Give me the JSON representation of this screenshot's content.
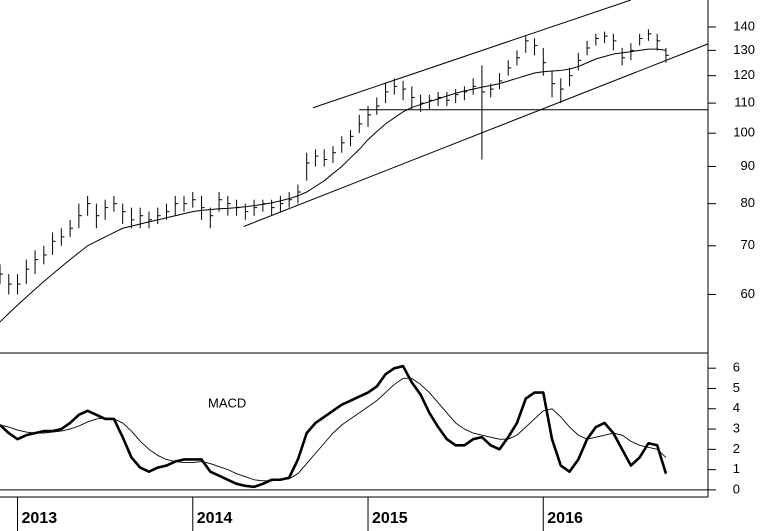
{
  "chart_data": [
    {
      "type": "ohlc",
      "x": [
        2012.9,
        2012.95,
        2013,
        2013.05,
        2013.1,
        2013.15,
        2013.2,
        2013.25,
        2013.3,
        2013.35,
        2013.4,
        2013.45,
        2013.5,
        2013.55,
        2013.6,
        2013.65,
        2013.7,
        2013.75,
        2013.8,
        2013.85,
        2013.9,
        2013.95,
        2014,
        2014.05,
        2014.1,
        2014.15,
        2014.2,
        2014.25,
        2014.3,
        2014.35,
        2014.4,
        2014.45,
        2014.5,
        2014.55,
        2014.6,
        2014.65,
        2014.7,
        2014.75,
        2014.8,
        2014.85,
        2014.9,
        2014.95,
        2015,
        2015.05,
        2015.1,
        2015.15,
        2015.2,
        2015.25,
        2015.3,
        2015.35,
        2015.4,
        2015.45,
        2015.5,
        2015.55,
        2015.6,
        2015.65,
        2015.7,
        2015.75,
        2015.8,
        2015.85,
        2015.9,
        2015.95,
        2016,
        2016.05,
        2016.1,
        2016.15,
        2016.2,
        2016.25,
        2016.3,
        2016.35,
        2016.4,
        2016.45,
        2016.5,
        2016.55,
        2016.6,
        2016.65,
        2016.7
      ],
      "high": [
        66,
        64,
        64,
        67,
        69,
        70,
        73,
        74,
        76,
        80,
        82,
        80,
        81,
        82,
        80,
        79,
        79,
        78,
        79,
        80,
        82,
        82,
        83,
        82,
        79,
        83,
        82,
        81,
        80,
        81,
        81,
        81,
        82,
        83,
        85,
        94,
        95,
        95,
        96,
        99,
        101,
        106,
        109,
        112,
        117,
        119,
        118,
        116,
        113,
        113,
        114,
        114,
        115,
        116,
        119,
        124,
        117,
        121,
        126,
        130,
        136,
        135,
        131,
        122,
        119,
        123,
        129,
        134,
        137,
        138,
        137,
        131,
        133,
        137,
        139,
        137,
        131
      ],
      "low": [
        62,
        60,
        60,
        62,
        64,
        66,
        68,
        70,
        72,
        74,
        77,
        74,
        76,
        78,
        75,
        74,
        74,
        74,
        75,
        76,
        77,
        78,
        79,
        76,
        74,
        78,
        77,
        77,
        76,
        77,
        78,
        77,
        78,
        79,
        80,
        86,
        90,
        90,
        91,
        94,
        96,
        100,
        102,
        106,
        110,
        113,
        111,
        108,
        107,
        108,
        109,
        109,
        110,
        111,
        113,
        92,
        112,
        115,
        120,
        124,
        129,
        128,
        120,
        112,
        110,
        116,
        122,
        128,
        132,
        133,
        130,
        124,
        126,
        132,
        134,
        130,
        125
      ],
      "close": [
        64,
        62,
        62,
        65,
        67,
        68,
        71,
        72,
        74,
        77,
        80,
        77,
        79,
        80,
        78,
        76,
        77,
        76,
        77,
        78,
        80,
        80,
        81,
        79,
        77,
        81,
        80,
        79,
        78,
        79,
        80,
        79,
        80,
        81,
        83,
        91,
        93,
        92,
        94,
        97,
        99,
        103,
        106,
        109,
        114,
        116,
        115,
        112,
        110,
        111,
        112,
        111,
        113,
        114,
        116,
        114,
        115,
        118,
        123,
        127,
        134,
        132,
        125,
        117,
        115,
        120,
        126,
        131,
        135,
        136,
        134,
        127,
        130,
        135,
        137,
        134,
        128
      ],
      "moving_average": [
        55,
        56.5,
        58,
        59.5,
        61,
        62.5,
        64,
        65.5,
        67,
        68.5,
        70,
        71,
        72,
        73,
        74,
        74.5,
        75,
        75.5,
        76,
        76.5,
        77,
        77.5,
        78,
        78.3,
        78.5,
        78.7,
        78.8,
        79,
        79.2,
        79.5,
        79.8,
        80.2,
        80.7,
        81.3,
        82,
        83,
        84.5,
        86,
        88,
        90,
        92.5,
        95,
        98,
        100.5,
        103,
        105,
        107,
        108.5,
        109.5,
        110.5,
        111.5,
        112.5,
        113.5,
        114.3,
        115,
        115.7,
        116.3,
        117,
        118,
        119,
        120,
        121,
        121.5,
        121.8,
        122,
        122.5,
        123.5,
        125,
        126.5,
        127.5,
        128.5,
        129,
        129.5,
        130,
        130.5,
        130.5,
        130
      ],
      "trendlines": [
        {
          "x": [
            2014.686,
            2016.5
          ],
          "y": [
            108.4,
            152.5
          ]
        },
        {
          "x": [
            2014.29,
            2016.94
          ],
          "y": [
            74.4,
            132.7
          ]
        },
        {
          "x": [
            2014.95,
            2016.94
          ],
          "y": [
            107.7,
            107.7
          ]
        }
      ],
      "color": "#000000",
      "log_scale": true,
      "ylim": [
        50,
        152.5
      ],
      "yticks": [
        60,
        70,
        80,
        90,
        100,
        110,
        120,
        130,
        140
      ]
    },
    {
      "type": "line",
      "title": "MACD",
      "x": [
        2012.9,
        2012.95,
        2013,
        2013.05,
        2013.1,
        2013.15,
        2013.2,
        2013.25,
        2013.3,
        2013.35,
        2013.4,
        2013.45,
        2013.5,
        2013.55,
        2013.6,
        2013.65,
        2013.7,
        2013.75,
        2013.8,
        2013.85,
        2013.9,
        2013.95,
        2014,
        2014.05,
        2014.1,
        2014.15,
        2014.2,
        2014.25,
        2014.3,
        2014.35,
        2014.4,
        2014.45,
        2014.5,
        2014.55,
        2014.6,
        2014.65,
        2014.7,
        2014.75,
        2014.8,
        2014.85,
        2014.9,
        2014.95,
        2015,
        2015.05,
        2015.1,
        2015.15,
        2015.2,
        2015.25,
        2015.3,
        2015.35,
        2015.4,
        2015.45,
        2015.5,
        2015.55,
        2015.6,
        2015.65,
        2015.7,
        2015.75,
        2015.8,
        2015.85,
        2015.9,
        2015.95,
        2016,
        2016.05,
        2016.1,
        2016.15,
        2016.2,
        2016.25,
        2016.3,
        2016.35,
        2016.4,
        2016.45,
        2016.5,
        2016.55,
        2016.6,
        2016.65,
        2016.7
      ],
      "series": [
        {
          "color": "#000000",
          "line_width": 2.6,
          "values": [
            3.2,
            2.8,
            2.5,
            2.7,
            2.8,
            2.9,
            2.9,
            3.0,
            3.3,
            3.7,
            3.9,
            3.7,
            3.5,
            3.5,
            2.6,
            1.6,
            1.1,
            0.9,
            1.1,
            1.2,
            1.4,
            1.5,
            1.5,
            1.5,
            0.9,
            0.7,
            0.5,
            0.3,
            0.2,
            0.15,
            0.3,
            0.5,
            0.5,
            0.6,
            1.5,
            2.8,
            3.3,
            3.6,
            3.9,
            4.2,
            4.4,
            4.6,
            4.8,
            5.1,
            5.7,
            6.0,
            6.1,
            5.3,
            4.7,
            3.8,
            3.1,
            2.5,
            2.2,
            2.2,
            2.5,
            2.6,
            2.2,
            2.0,
            2.6,
            3.3,
            4.5,
            4.8,
            4.8,
            2.5,
            1.2,
            0.9,
            1.5,
            2.5,
            3.1,
            3.3,
            2.8,
            2.0,
            1.2,
            1.6,
            2.3,
            2.2,
            0.8
          ]
        },
        {
          "color": "#000000",
          "line_width": 0.9,
          "values": [
            3.2,
            3.1,
            2.95,
            2.85,
            2.8,
            2.8,
            2.85,
            2.9,
            3.0,
            3.15,
            3.35,
            3.5,
            3.55,
            3.5,
            3.3,
            2.9,
            2.4,
            2.0,
            1.7,
            1.5,
            1.4,
            1.35,
            1.35,
            1.4,
            1.3,
            1.15,
            1.0,
            0.8,
            0.65,
            0.5,
            0.45,
            0.45,
            0.5,
            0.55,
            0.8,
            1.3,
            1.8,
            2.3,
            2.8,
            3.2,
            3.5,
            3.8,
            4.1,
            4.4,
            4.8,
            5.2,
            5.5,
            5.5,
            5.2,
            4.8,
            4.3,
            3.8,
            3.3,
            3.0,
            2.8,
            2.7,
            2.6,
            2.5,
            2.5,
            2.7,
            3.1,
            3.5,
            3.9,
            4.0,
            3.6,
            3.1,
            2.7,
            2.5,
            2.6,
            2.7,
            2.8,
            2.7,
            2.4,
            2.2,
            2.1,
            2.0,
            1.6
          ]
        }
      ],
      "ylim": [
        -0.35,
        6.75
      ],
      "yticks": [
        0,
        1,
        2,
        3,
        4,
        5,
        6
      ],
      "xlim": [
        2012.9,
        2016.94
      ],
      "xticks": [
        2013,
        2014,
        2015,
        2016
      ]
    }
  ]
}
